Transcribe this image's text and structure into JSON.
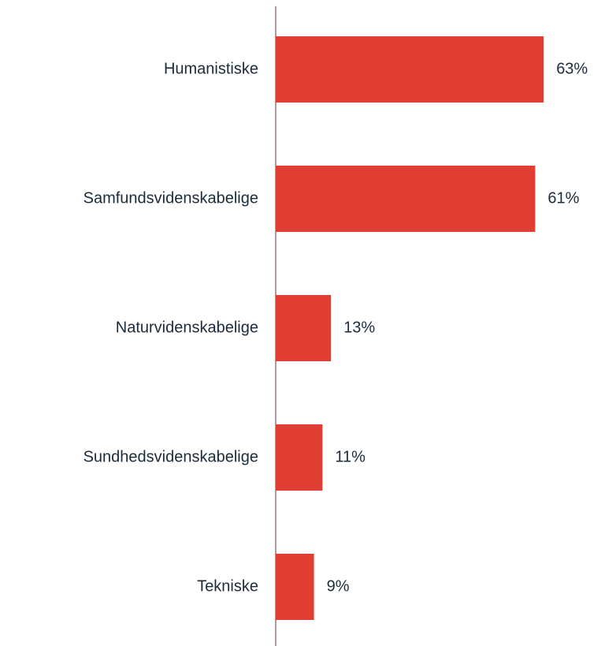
{
  "chart_data": {
    "type": "bar",
    "orientation": "horizontal",
    "categories": [
      "Humanistiske",
      "Samfundsvidenskabelige",
      "Naturvidenskabelige",
      "Sundhedsvidenskabelige",
      "Tekniske"
    ],
    "values": [
      63,
      61,
      13,
      11,
      9
    ],
    "value_labels": [
      "63%",
      "61%",
      "13%",
      "11%",
      "9%"
    ],
    "color": "#e03e33"
  }
}
